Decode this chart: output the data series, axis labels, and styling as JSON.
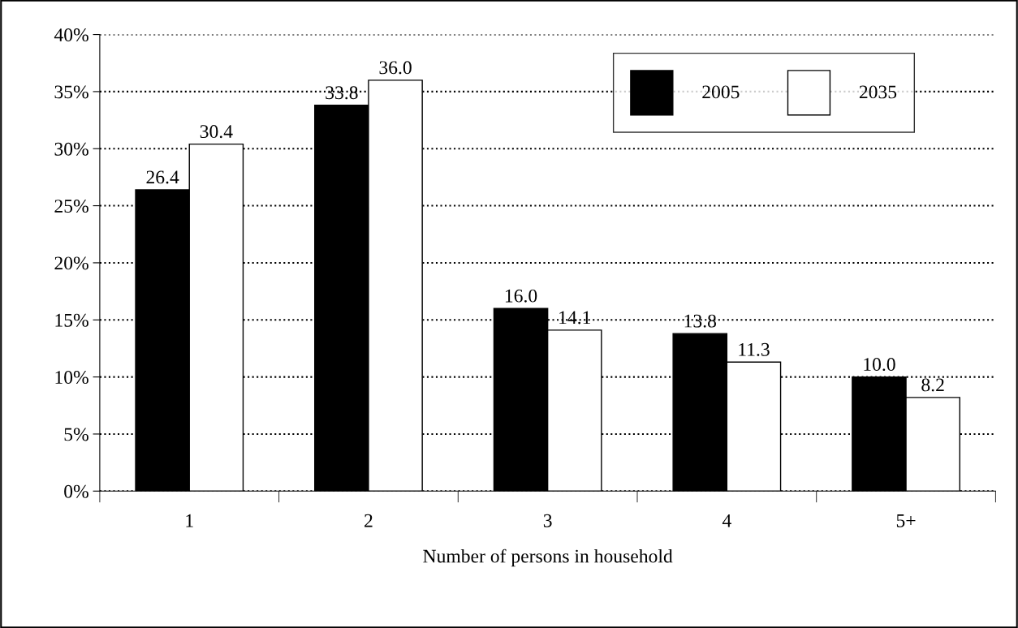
{
  "chart_data": {
    "type": "bar",
    "xlabel": "Number of persons in household",
    "categories": [
      "1",
      "2",
      "3",
      "4",
      "5+"
    ],
    "series": [
      {
        "name": "2005",
        "color": "#000000",
        "values": [
          26.4,
          33.8,
          16.0,
          13.8,
          10.0
        ],
        "value_labels": [
          "26.4",
          "33.8",
          "16.0",
          "13.8",
          "10.0"
        ]
      },
      {
        "name": "2035",
        "color": "#ffffff",
        "values": [
          30.4,
          36.0,
          14.1,
          11.3,
          8.2
        ],
        "value_labels": [
          "30.4",
          "36.0",
          "14.1",
          "11.3",
          "8.2"
        ]
      }
    ],
    "ylim": [
      0,
      40
    ],
    "yticks": [
      {
        "value": 0,
        "label": "0%"
      },
      {
        "value": 5,
        "label": "5%"
      },
      {
        "value": 10,
        "label": "10%"
      },
      {
        "value": 15,
        "label": "15%"
      },
      {
        "value": 20,
        "label": "20%"
      },
      {
        "value": 25,
        "label": "25%"
      },
      {
        "value": 30,
        "label": "30%"
      },
      {
        "value": 35,
        "label": "35%"
      },
      {
        "value": 40,
        "label": "40%"
      }
    ],
    "grid": "y",
    "legend": "top right"
  }
}
